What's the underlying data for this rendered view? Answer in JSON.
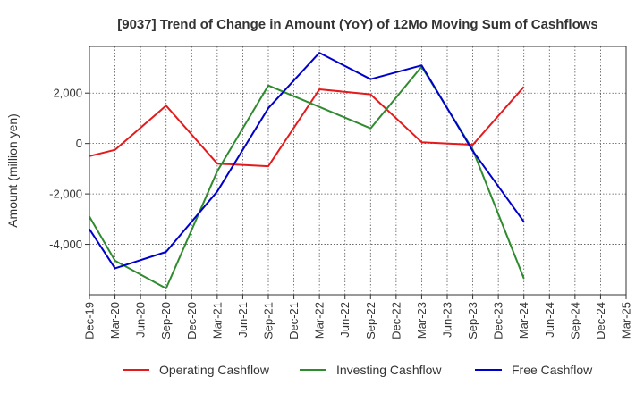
{
  "chart_data": {
    "type": "line",
    "title": "[9037]  Trend of Change in Amount (YoY) of 12Mo Moving Sum of Cashflows",
    "xlabel": "",
    "ylabel": "Amount (million yen)",
    "categories": [
      "Dec-19",
      "Mar-20",
      "Jun-20",
      "Sep-20",
      "Dec-20",
      "Mar-21",
      "Jun-21",
      "Sep-21",
      "Dec-21",
      "Mar-22",
      "Jun-22",
      "Sep-22",
      "Dec-22",
      "Mar-23",
      "Jun-23",
      "Sep-23",
      "Dec-23",
      "Mar-24",
      "Jun-24",
      "Sep-24",
      "Dec-24",
      "Mar-25"
    ],
    "yticks": [
      -4000,
      -2000,
      0,
      2000
    ],
    "ytick_labels": [
      "-4,000",
      "-2,000",
      "0",
      "2,000"
    ],
    "ylim": [
      -6000,
      3850
    ],
    "grid": true,
    "legend_position": "bottom",
    "series": [
      {
        "name": "Operating Cashflow",
        "color": "#e41a1c",
        "values": [
          -500,
          -250,
          null,
          1500,
          null,
          -800,
          null,
          -900,
          null,
          2150,
          null,
          1950,
          null,
          50,
          null,
          -50,
          null,
          2250,
          null,
          null,
          null,
          null
        ]
      },
      {
        "name": "Investing Cashflow",
        "color": "#2e8b2e",
        "values": [
          -2900,
          -4650,
          null,
          -5750,
          null,
          -1100,
          null,
          2300,
          null,
          1450,
          null,
          600,
          null,
          3050,
          null,
          -250,
          null,
          -5350,
          null,
          null,
          null,
          null
        ]
      },
      {
        "name": "Free Cashflow",
        "color": "#0000cc",
        "values": [
          -3400,
          -4950,
          null,
          -4300,
          null,
          -1900,
          null,
          1400,
          null,
          3600,
          null,
          2550,
          null,
          3100,
          null,
          -300,
          null,
          -3100,
          null,
          null,
          null,
          null
        ]
      }
    ]
  }
}
